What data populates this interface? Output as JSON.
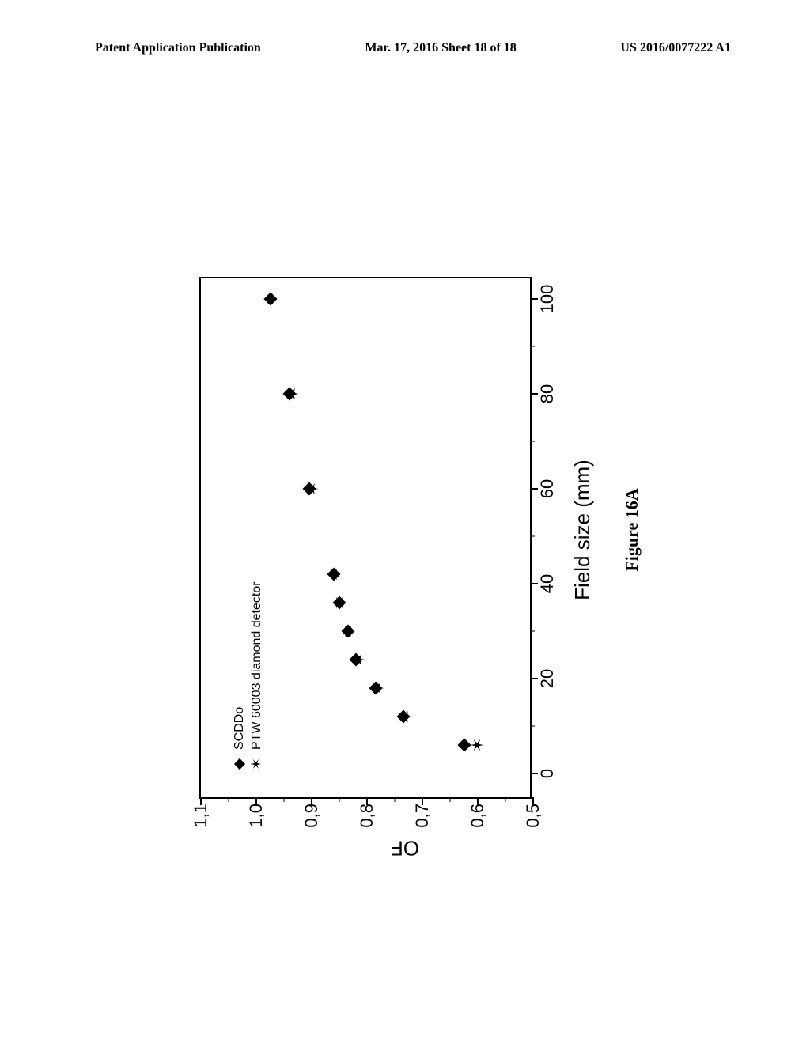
{
  "header": {
    "left": "Patent Application Publication",
    "center": "Mar. 17, 2016  Sheet 18 of 18",
    "right": "US 2016/0077222 A1"
  },
  "chart": {
    "type": "scatter",
    "xlabel": "Field size (mm)",
    "ylabel": "OF",
    "figure_caption": "Figure 16A",
    "partial_top": "",
    "xlim": [
      -5,
      105
    ],
    "ylim": [
      0.5,
      1.1
    ],
    "xticks": [
      0,
      20,
      40,
      60,
      80,
      100
    ],
    "xtick_labels": [
      "0",
      "20",
      "40",
      "60",
      "80",
      "100"
    ],
    "xticks_minor": [
      10,
      30,
      50,
      70,
      90
    ],
    "yticks": [
      0.5,
      0.6,
      0.7,
      0.8,
      0.9,
      1.0,
      1.1
    ],
    "ytick_labels": [
      "0,5",
      "0,6",
      "0,7",
      "0,8",
      "0,9",
      "1,0",
      "1,1"
    ],
    "yticks_minor": [
      0.55,
      0.65,
      0.75,
      0.85,
      0.95,
      1.05
    ],
    "legend": [
      {
        "marker": "diamond",
        "label": "SCDDo"
      },
      {
        "marker": "star",
        "label": "PTW 60003 diamond detector"
      }
    ],
    "series": [
      {
        "name": "SCDDo",
        "marker": "diamond",
        "color": "#000000",
        "points": [
          {
            "x": 6,
            "y": 0.625
          },
          {
            "x": 12,
            "y": 0.735
          },
          {
            "x": 18,
            "y": 0.785
          },
          {
            "x": 24,
            "y": 0.82
          },
          {
            "x": 30,
            "y": 0.835
          },
          {
            "x": 36,
            "y": 0.85
          },
          {
            "x": 42,
            "y": 0.86
          },
          {
            "x": 60,
            "y": 0.905
          },
          {
            "x": 80,
            "y": 0.94
          },
          {
            "x": 100,
            "y": 0.975
          }
        ]
      },
      {
        "name": "PTW",
        "marker": "star",
        "color": "#000000",
        "points": [
          {
            "x": 6,
            "y": 0.6
          },
          {
            "x": 12,
            "y": 0.73
          },
          {
            "x": 18,
            "y": 0.78
          },
          {
            "x": 24,
            "y": 0.815
          },
          {
            "x": 30,
            "y": 0.833
          },
          {
            "x": 36,
            "y": 0.848
          },
          {
            "x": 42,
            "y": 0.858
          },
          {
            "x": 60,
            "y": 0.898
          },
          {
            "x": 80,
            "y": 0.935
          },
          {
            "x": 100,
            "y": 0.975
          }
        ]
      }
    ],
    "background_color": "#ffffff",
    "border_color": "#000000",
    "marker_size": 12
  }
}
